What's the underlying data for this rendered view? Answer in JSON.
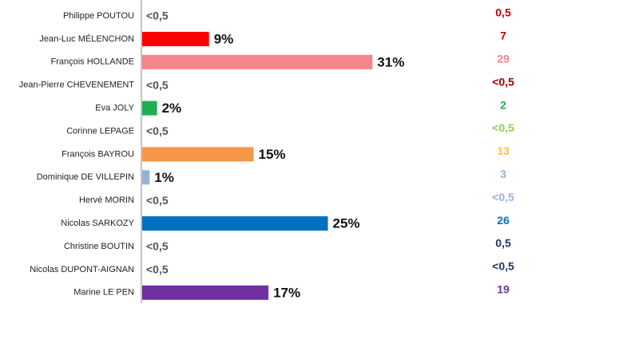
{
  "chart_data": {
    "type": "bar",
    "orientation": "horizontal",
    "categories": [
      "Philippe POUTOU",
      "Jean-Luc MÉLENCHON",
      "François HOLLANDE",
      "Jean-Pierre CHEVENEMENT",
      "Eva JOLY",
      "Corinne LEPAGE",
      "François BAYROU",
      "Dominique DE VILLEPIN",
      "Hervé MORIN",
      "Nicolas SARKOZY",
      "Christine BOUTIN",
      "Nicolas DUPONT-AIGNAN",
      "Marine LE PEN"
    ],
    "values": [
      null,
      9,
      31,
      null,
      2,
      null,
      15,
      1,
      null,
      25,
      null,
      null,
      17
    ],
    "value_labels": [
      "<0,5",
      "9%",
      "31%",
      "<0,5",
      "2%",
      "<0,5",
      "15%",
      "1%",
      "<0,5",
      "25%",
      "<0,5",
      "<0,5",
      "17%"
    ],
    "colors": [
      "#c00000",
      "#ff0000",
      "#f4858a",
      "#c00000",
      "#1fae50",
      "#92d050",
      "#f79646",
      "#95b3d7",
      "#95b3d7",
      "#0070c0",
      "#1f3864",
      "#1f3864",
      "#7030a0"
    ],
    "previous_labels": [
      "0,5",
      "7",
      "29",
      "<0,5",
      "2",
      "<0,5",
      "13",
      "3",
      "<0,5",
      "26",
      "0,5",
      "<0,5",
      "19"
    ],
    "previous_colors": [
      "#c00000",
      "#c00000",
      "#f4858a",
      "#a00000",
      "#1fae50",
      "#92d050",
      "#f5c242",
      "#95b3d7",
      "#95b3d7",
      "#0070c0",
      "#1f3864",
      "#1f3864",
      "#7030a0"
    ]
  }
}
